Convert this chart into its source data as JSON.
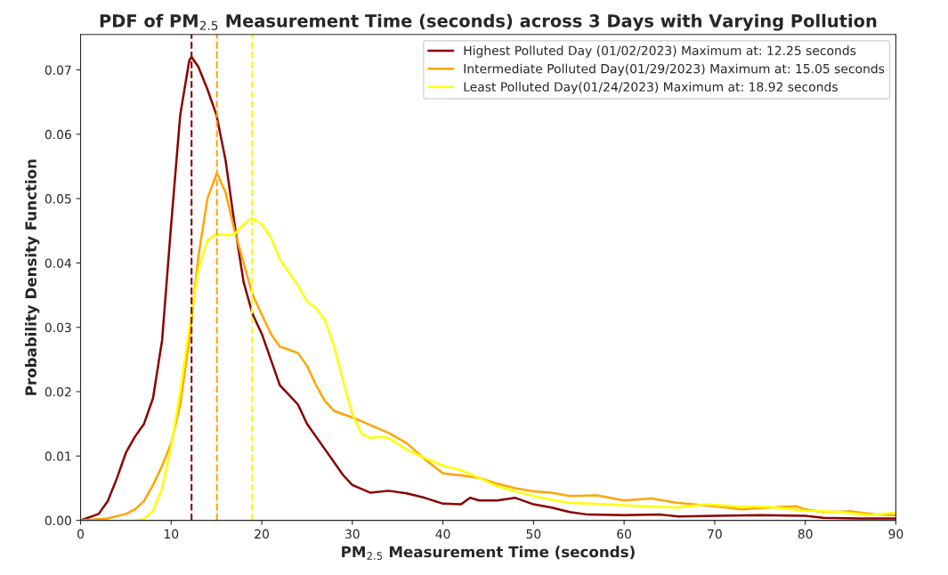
{
  "chart_data": {
    "type": "line",
    "title": "PDF of PM$_{2.5}$ Measurement Time (seconds) across 3 Days with Varying Pollution",
    "xlabel": "PM$_{2.5}$ Measurement Time (seconds)",
    "ylabel": "Probability Density Function",
    "series": [
      {
        "name": "Highest Polluted Day (01/02/2023) Maximum at: 12.25 seconds",
        "color": "#8b0000",
        "x": [
          0,
          2,
          3,
          4,
          5,
          6,
          7,
          8,
          9,
          10,
          11,
          12,
          12.25,
          13,
          14,
          15,
          16,
          17,
          18,
          19,
          20,
          21,
          22,
          23,
          24,
          25,
          27,
          29,
          30,
          32,
          34,
          36,
          38,
          40,
          42,
          43,
          44,
          46,
          48,
          50,
          52,
          54,
          56,
          60,
          64,
          66,
          70,
          75,
          80,
          82,
          86,
          90
        ],
        "values": [
          0,
          0.001,
          0.003,
          0.0065,
          0.0105,
          0.013,
          0.015,
          0.019,
          0.028,
          0.046,
          0.063,
          0.0715,
          0.072,
          0.0705,
          0.067,
          0.063,
          0.056,
          0.046,
          0.037,
          0.032,
          0.029,
          0.025,
          0.021,
          0.0195,
          0.018,
          0.015,
          0.011,
          0.007,
          0.0055,
          0.0043,
          0.0046,
          0.0042,
          0.0035,
          0.0026,
          0.0025,
          0.0035,
          0.0031,
          0.0031,
          0.0035,
          0.0025,
          0.002,
          0.0013,
          0.0009,
          0.0008,
          0.0009,
          0.0006,
          0.0007,
          0.0008,
          0.0007,
          0.0004,
          0.0003,
          0.0003
        ]
      },
      {
        "name": "Intermediate Polluted Day(01/29/2023) Maximum at: 15.05 seconds",
        "color": "#ffa500",
        "x": [
          0,
          3,
          5,
          6,
          7,
          8,
          9,
          10,
          11,
          12,
          13,
          14,
          15.05,
          16,
          17,
          18,
          19,
          20,
          21,
          22,
          23,
          24,
          25,
          26,
          27,
          28,
          30,
          32,
          34,
          36,
          38,
          40,
          42,
          44,
          46,
          48,
          50,
          52,
          54,
          57,
          60,
          63,
          66,
          70,
          73,
          76,
          79,
          80,
          82,
          85,
          88,
          90
        ],
        "values": [
          0,
          0.0003,
          0.001,
          0.0017,
          0.003,
          0.0055,
          0.0085,
          0.012,
          0.018,
          0.028,
          0.041,
          0.05,
          0.054,
          0.051,
          0.045,
          0.04,
          0.035,
          0.032,
          0.029,
          0.027,
          0.0265,
          0.026,
          0.024,
          0.021,
          0.0185,
          0.017,
          0.016,
          0.0148,
          0.0136,
          0.012,
          0.0095,
          0.0073,
          0.007,
          0.0066,
          0.0057,
          0.005,
          0.0045,
          0.0043,
          0.0038,
          0.0039,
          0.0031,
          0.0034,
          0.0027,
          0.0022,
          0.0017,
          0.002,
          0.0022,
          0.0017,
          0.0013,
          0.0014,
          0.0009,
          0.0008
        ]
      },
      {
        "name": "Least Polluted Day(01/24/2023) Maximum at: 18.92 seconds",
        "color": "#ffff00",
        "x": [
          6,
          7,
          8,
          9,
          10,
          11,
          12,
          13,
          14,
          15,
          16,
          17,
          18,
          18.92,
          20,
          21,
          22,
          23,
          24,
          25,
          26,
          27,
          28,
          29,
          30,
          31,
          32,
          33,
          34,
          36,
          38,
          40,
          42,
          44,
          46,
          48,
          50,
          52,
          54,
          58,
          62,
          66,
          69,
          72,
          76,
          80,
          84,
          87,
          90
        ],
        "values": [
          0,
          0.0002,
          0.0015,
          0.005,
          0.0115,
          0.02,
          0.03,
          0.039,
          0.0435,
          0.0445,
          0.0443,
          0.0445,
          0.046,
          0.047,
          0.046,
          0.044,
          0.0405,
          0.0385,
          0.0365,
          0.034,
          0.033,
          0.031,
          0.027,
          0.0215,
          0.0165,
          0.0135,
          0.0128,
          0.013,
          0.0128,
          0.011,
          0.0097,
          0.0085,
          0.0078,
          0.0066,
          0.0053,
          0.0045,
          0.0038,
          0.0032,
          0.0027,
          0.0025,
          0.0022,
          0.002,
          0.0025,
          0.0022,
          0.0021,
          0.0015,
          0.0013,
          0.0008,
          0.0012
        ]
      }
    ],
    "ref_lines": [
      {
        "axis": "x",
        "value": 12.25,
        "color": "#8b0000",
        "line_style": "dashed"
      },
      {
        "axis": "x",
        "value": 15.05,
        "color": "#ffa500",
        "line_style": "dashed"
      },
      {
        "axis": "x",
        "value": 18.92,
        "color": "#ffff00",
        "line_style": "dashed"
      }
    ],
    "xlim": [
      0,
      90
    ],
    "xticks": [
      0,
      10,
      20,
      30,
      40,
      50,
      60,
      70,
      80,
      90
    ],
    "ylim": [
      0,
      0.0755
    ],
    "yticks": [
      {
        "value": 0,
        "label": "0.00"
      },
      {
        "value": 0.01,
        "label": "0.01"
      },
      {
        "value": 0.02,
        "label": "0.02"
      },
      {
        "value": 0.03,
        "label": "0.03"
      },
      {
        "value": 0.04,
        "label": "0.04"
      },
      {
        "value": 0.05,
        "label": "0.05"
      },
      {
        "value": 0.06,
        "label": "0.06"
      },
      {
        "value": 0.07,
        "label": "0.07"
      }
    ],
    "grid": false,
    "legend": "top right",
    "line_style": "solid",
    "marker": "none"
  }
}
